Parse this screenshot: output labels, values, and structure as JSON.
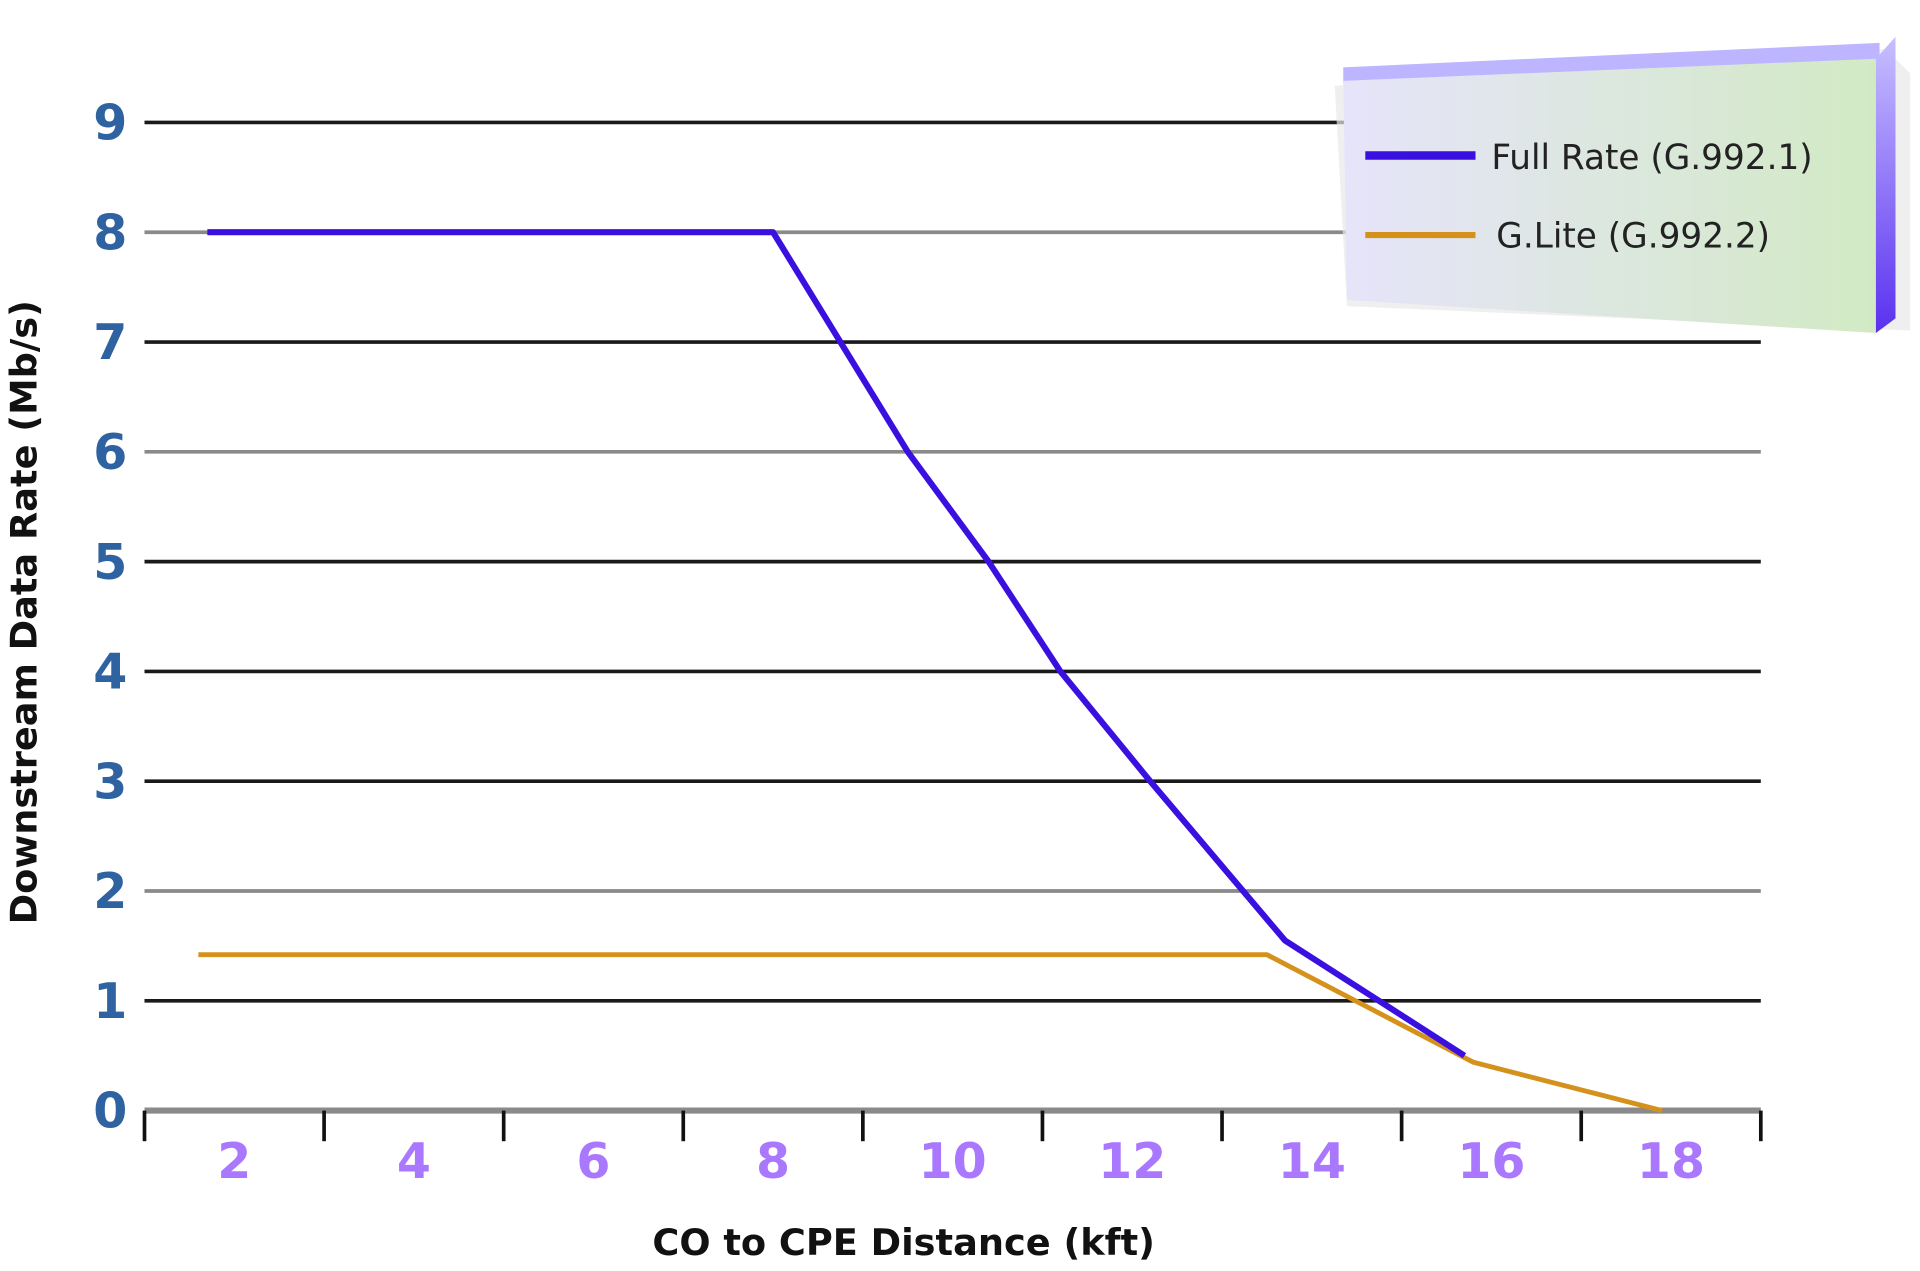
{
  "chart_data": {
    "type": "line",
    "title": "",
    "xlabel": "CO to CPE Distance (kft)",
    "ylabel": "Downstream Data Rate (Mb/s)",
    "x_ticks": [
      "2",
      "4",
      "6",
      "8",
      "10",
      "12",
      "14",
      "16",
      "18"
    ],
    "y_ticks": [
      "0",
      "1",
      "2",
      "3",
      "4",
      "5",
      "6",
      "7",
      "8",
      "9"
    ],
    "ylim": [
      0,
      9
    ],
    "grid": true,
    "legend_position": "top-right",
    "series": [
      {
        "name": "Full Rate (G.992.1)",
        "color": "#3a10e0",
        "x": [
          1.7,
          8.0,
          9.5,
          10.4,
          11.2,
          12.2,
          13.7,
          15.7
        ],
        "y": [
          8,
          8,
          6,
          5,
          4,
          3,
          1.55,
          0.5
        ]
      },
      {
        "name": "G.Lite (G.992.2)",
        "color": "#d4921c",
        "x": [
          1.6,
          13.5,
          15.8,
          17.9
        ],
        "y": [
          1.42,
          1.42,
          0.44,
          0
        ]
      }
    ]
  }
}
